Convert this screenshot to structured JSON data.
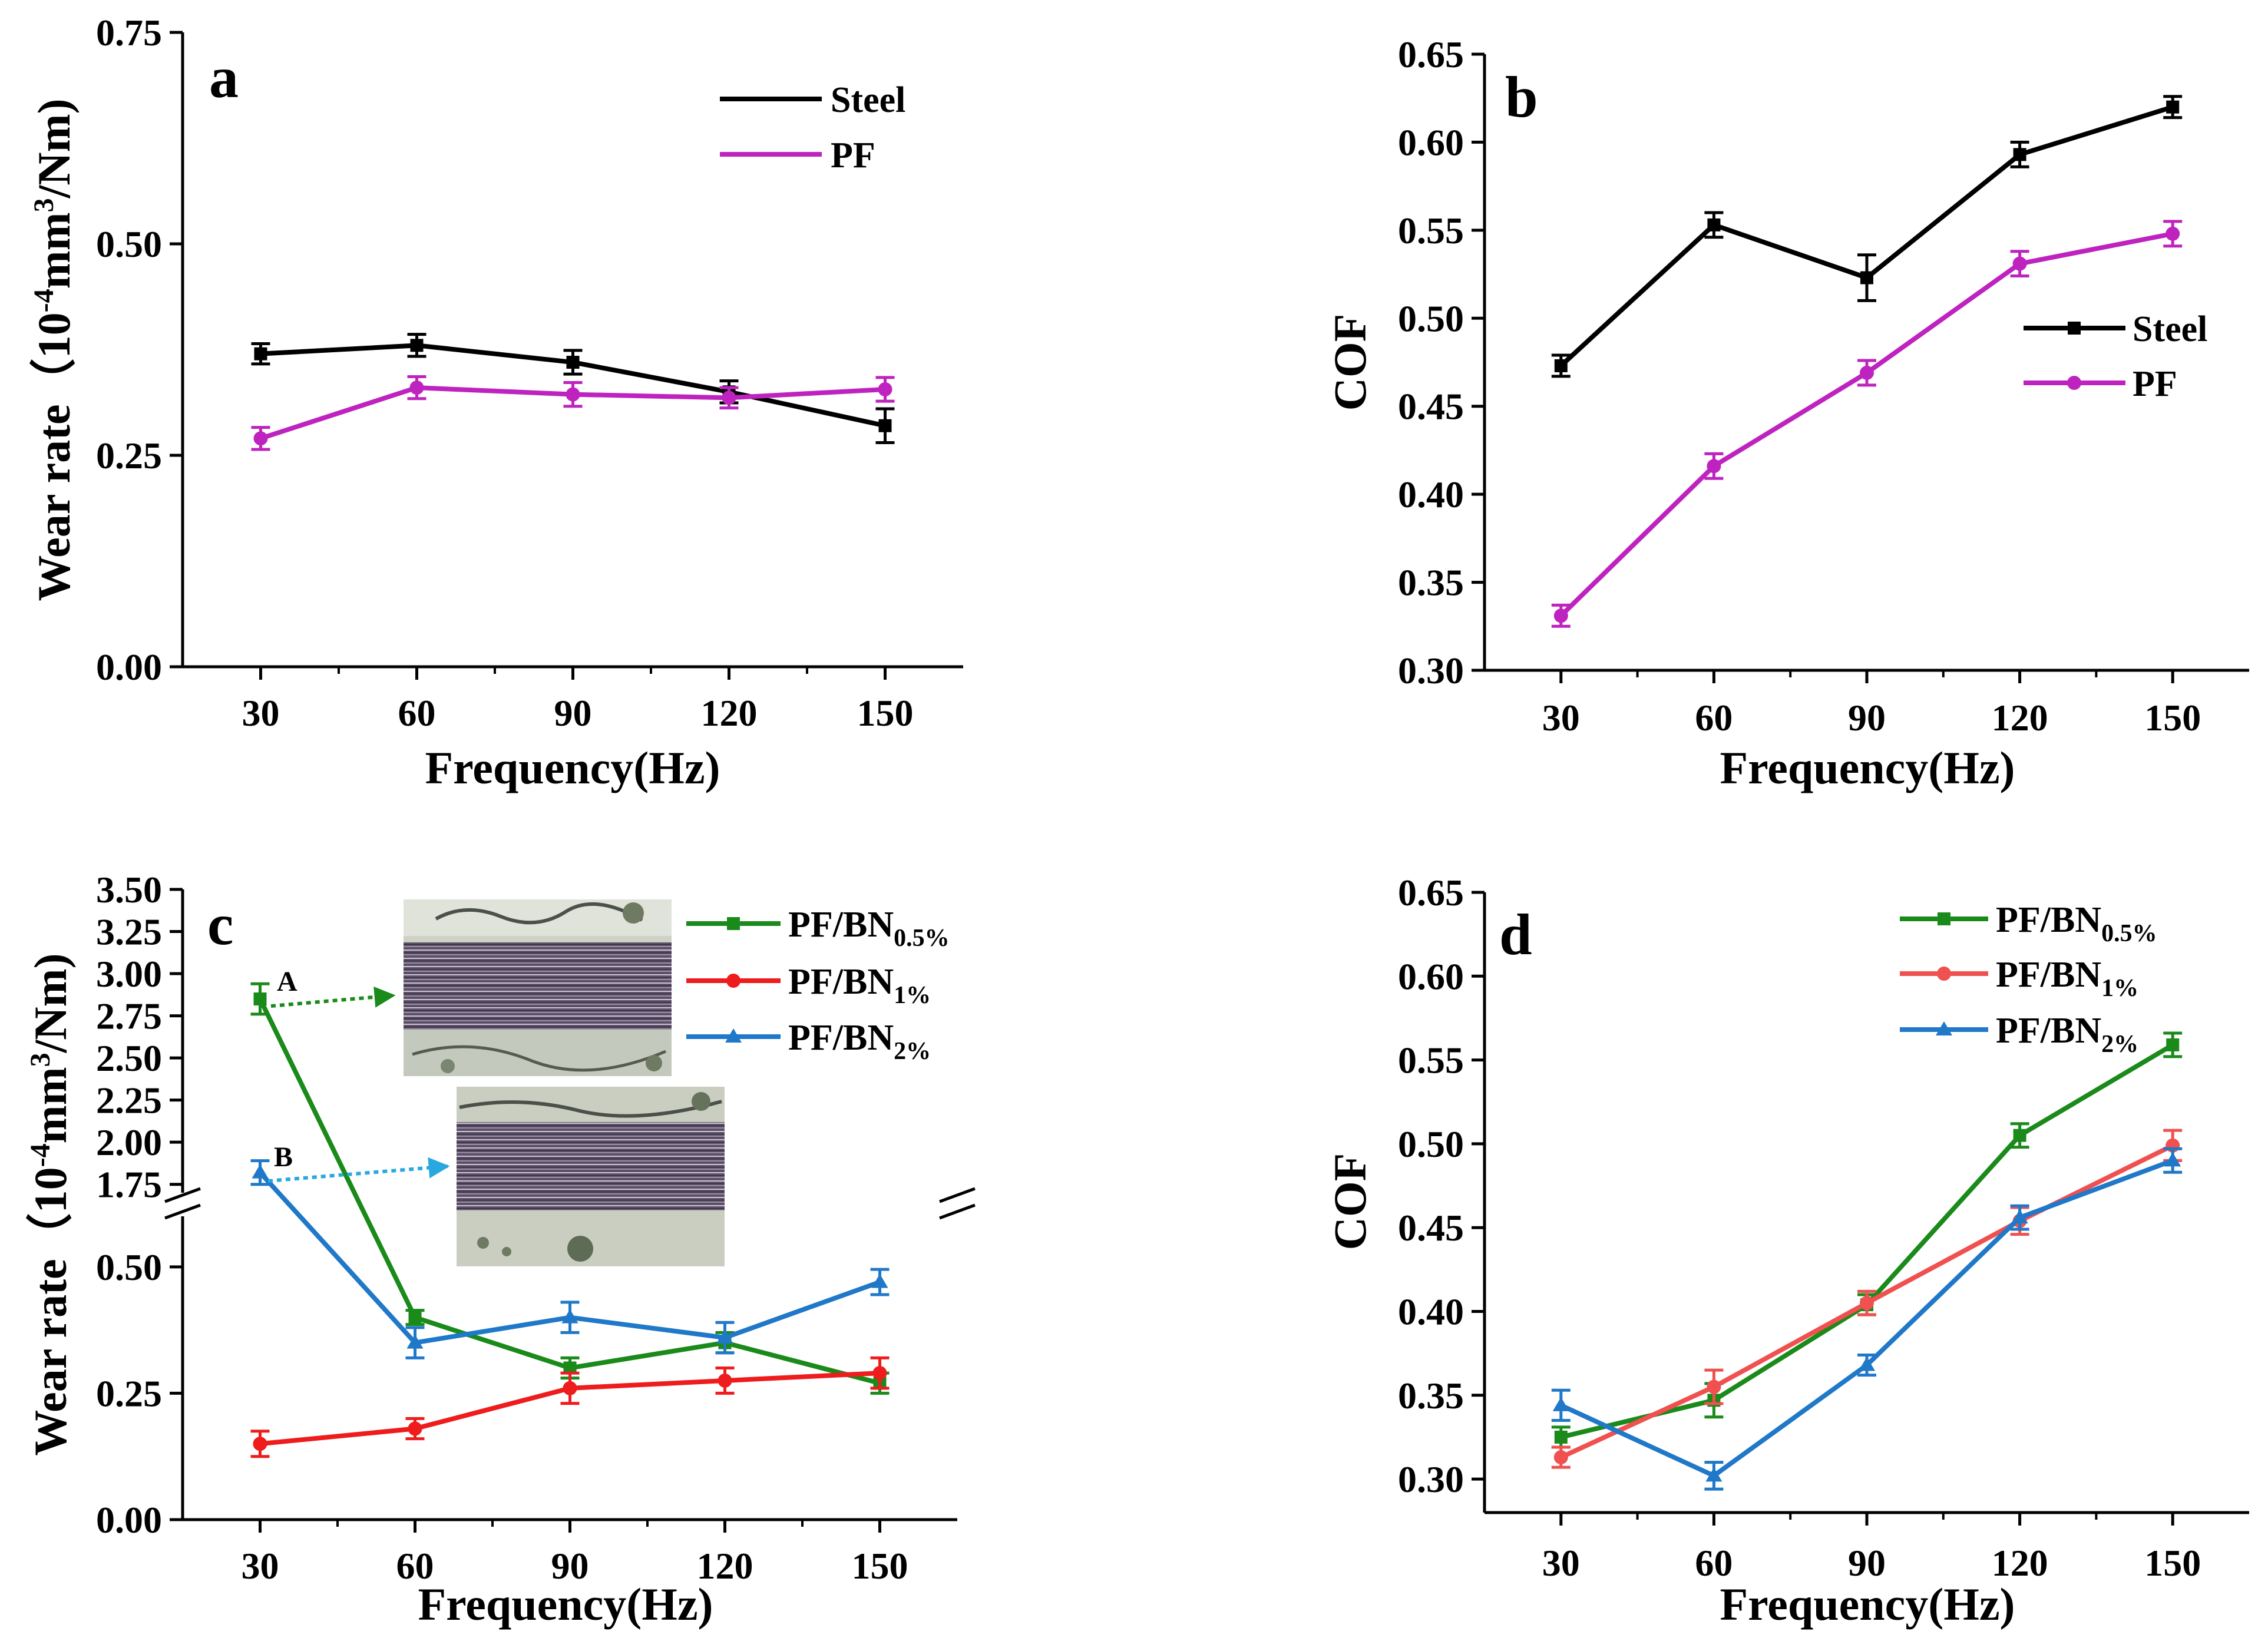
{
  "figure": {
    "panels": [
      "a",
      "b",
      "c",
      "d"
    ]
  },
  "chart_data": [
    {
      "panel": "a",
      "type": "line",
      "title": "",
      "xlabel": "Frequency(Hz)",
      "ylabel_main": "Wear rate（10",
      "ylabel_sup1": "-4",
      "ylabel_mid": "mm",
      "ylabel_sup2": "3",
      "ylabel_end": "/Nm)",
      "x": [
        30,
        60,
        90,
        120,
        150
      ],
      "xticks": [
        "30",
        "60",
        "90",
        "120",
        "150"
      ],
      "xlim": [
        15,
        165
      ],
      "ylim": [
        0,
        0.75
      ],
      "yticks": [
        0,
        0.25,
        0.5,
        0.75
      ],
      "yticklabels": [
        "0.00",
        "0.25",
        "0.50",
        "0.75"
      ],
      "legend_loc": "top-right",
      "series": [
        {
          "name": "Steel",
          "sub": "",
          "color": "#000000",
          "marker": "square",
          "values": [
            0.37,
            0.38,
            0.36,
            0.325,
            0.285
          ],
          "err": [
            0.012,
            0.013,
            0.014,
            0.013,
            0.02
          ]
        },
        {
          "name": "PF",
          "sub": "",
          "color": "#bf23bf",
          "marker": "circle",
          "values": [
            0.27,
            0.33,
            0.322,
            0.318,
            0.328
          ],
          "err": [
            0.013,
            0.013,
            0.014,
            0.012,
            0.014
          ]
        }
      ]
    },
    {
      "panel": "b",
      "type": "line",
      "title": "",
      "xlabel": "Frequency(Hz)",
      "ylabel_main": "COF",
      "x": [
        30,
        60,
        90,
        120,
        150
      ],
      "xticks": [
        "30",
        "60",
        "90",
        "120",
        "150"
      ],
      "xlim": [
        15,
        165
      ],
      "ylim": [
        0.3,
        0.65
      ],
      "yticks": [
        0.3,
        0.35,
        0.4,
        0.45,
        0.5,
        0.55,
        0.6,
        0.65
      ],
      "yticklabels": [
        "0.30",
        "0.35",
        "0.40",
        "0.45",
        "0.50",
        "0.55",
        "0.60",
        "0.65"
      ],
      "legend_loc": "center-right",
      "series": [
        {
          "name": "Steel",
          "sub": "",
          "color": "#000000",
          "marker": "square",
          "values": [
            0.473,
            0.553,
            0.523,
            0.593,
            0.62
          ],
          "err": [
            0.006,
            0.007,
            0.013,
            0.007,
            0.006
          ]
        },
        {
          "name": "PF",
          "sub": "",
          "color": "#bf23bf",
          "marker": "circle",
          "values": [
            0.331,
            0.416,
            0.469,
            0.531,
            0.548
          ],
          "err": [
            0.006,
            0.007,
            0.007,
            0.007,
            0.007
          ]
        }
      ]
    },
    {
      "panel": "c",
      "type": "line",
      "title": "",
      "xlabel": "Frequency(Hz)",
      "ylabel_main": "Wear rate（10",
      "ylabel_sup1": "-4",
      "ylabel_mid": "mm",
      "ylabel_sup2": "3",
      "ylabel_end": "/Nm)",
      "x": [
        30,
        60,
        90,
        120,
        150
      ],
      "xticks": [
        "30",
        "60",
        "90",
        "120",
        "150"
      ],
      "xlim": [
        15,
        165
      ],
      "broken_axis": true,
      "ylim_lower": [
        0,
        0.6
      ],
      "ylim_upper": [
        1.7,
        3.5
      ],
      "yticks_lower": [
        0,
        0.25,
        0.5
      ],
      "yticklabels_lower": [
        "0.00",
        "0.25",
        "0.50"
      ],
      "yticks_upper": [
        1.75,
        2.0,
        2.25,
        2.5,
        2.75,
        3.0,
        3.25,
        3.5
      ],
      "yticklabels_upper": [
        "1.75",
        "2.00",
        "2.25",
        "2.50",
        "2.75",
        "3.00",
        "3.25",
        "3.50"
      ],
      "legend_loc": "top-right",
      "annotations": [
        {
          "text": "A",
          "color": "#1a8a1a"
        },
        {
          "text": "B",
          "color": "#29a8e0"
        }
      ],
      "series": [
        {
          "name": "PF/BN",
          "sub": "0.5%",
          "color": "#1a8a1a",
          "marker": "square",
          "values": [
            2.85,
            0.4,
            0.3,
            0.35,
            0.27
          ],
          "err": [
            0.09,
            0.014,
            0.02,
            0.02,
            0.02
          ]
        },
        {
          "name": "PF/BN",
          "sub": "1%",
          "color": "#ee1c1c",
          "marker": "circle",
          "values": [
            0.15,
            0.18,
            0.26,
            0.275,
            0.29
          ],
          "err": [
            0.025,
            0.02,
            0.03,
            0.025,
            0.03
          ]
        },
        {
          "name": "PF/BN",
          "sub": "2%",
          "color": "#1f78c8",
          "marker": "triangle",
          "values": [
            1.82,
            0.35,
            0.4,
            0.36,
            0.47
          ],
          "err": [
            0.07,
            0.03,
            0.03,
            0.03,
            0.025
          ]
        }
      ]
    },
    {
      "panel": "d",
      "type": "line",
      "title": "",
      "xlabel": "Frequency(Hz)",
      "ylabel_main": "COF",
      "x": [
        30,
        60,
        90,
        120,
        150
      ],
      "xticks": [
        "30",
        "60",
        "90",
        "120",
        "150"
      ],
      "xlim": [
        15,
        165
      ],
      "ylim": [
        0.28,
        0.65
      ],
      "yticks": [
        0.3,
        0.35,
        0.4,
        0.45,
        0.5,
        0.55,
        0.6,
        0.65
      ],
      "yticklabels": [
        "0.30",
        "0.35",
        "0.40",
        "0.45",
        "0.50",
        "0.55",
        "0.60",
        "0.65"
      ],
      "legend_loc": "top-right",
      "series": [
        {
          "name": "PF/BN",
          "sub": "0.5%",
          "color": "#1a8a1a",
          "marker": "square",
          "values": [
            0.325,
            0.347,
            0.404,
            0.505,
            0.559
          ],
          "err": [
            0.006,
            0.01,
            0.006,
            0.007,
            0.007
          ]
        },
        {
          "name": "PF/BN",
          "sub": "1%",
          "color": "#f05050",
          "marker": "circle",
          "values": [
            0.313,
            0.355,
            0.405,
            0.454,
            0.499
          ],
          "err": [
            0.006,
            0.01,
            0.007,
            0.008,
            0.009
          ]
        },
        {
          "name": "PF/BN",
          "sub": "2%",
          "color": "#1f78c8",
          "marker": "triangle",
          "values": [
            0.344,
            0.302,
            0.368,
            0.456,
            0.49
          ],
          "err": [
            0.009,
            0.008,
            0.006,
            0.007,
            0.007
          ]
        }
      ]
    }
  ]
}
